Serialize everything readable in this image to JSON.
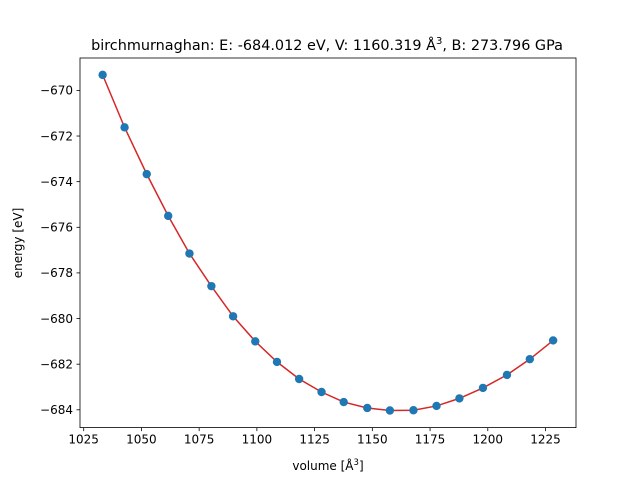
{
  "chart_data": {
    "type": "line",
    "title_main": "birchmurnaghan: E: -684.012 eV, V: 1160.319 Å",
    "title_sup": "3",
    "title_end": ", B: 273.796 GPa",
    "xlabel_main": "volume [Å",
    "xlabel_sup": "3",
    "xlabel_end": "]",
    "ylabel": "energy [eV]",
    "xlim": [
      1023.4,
      1238.2
    ],
    "ylim": [
      -684.78,
      -668.58
    ],
    "xticks": [
      1025,
      1050,
      1075,
      1100,
      1125,
      1150,
      1175,
      1200,
      1225
    ],
    "yticks": [
      -684,
      -682,
      -680,
      -678,
      -676,
      -674,
      -672,
      -670
    ],
    "ytick_labels": [
      "−684",
      "−682",
      "−680",
      "−678",
      "−676",
      "−674",
      "−672",
      "−670"
    ],
    "fit_color": "#d62728",
    "point_color": "#1f77b4",
    "points": {
      "x": [
        1033.2,
        1042.7,
        1052.3,
        1061.6,
        1070.8,
        1080.3,
        1089.7,
        1099.3,
        1108.7,
        1118.3,
        1128.0,
        1137.6,
        1147.8,
        1157.6,
        1167.8,
        1177.8,
        1187.7,
        1197.9,
        1208.3,
        1218.2,
        1228.3
      ],
      "y": [
        -669.32,
        -671.62,
        -673.67,
        -675.5,
        -677.15,
        -678.58,
        -679.9,
        -681.0,
        -681.9,
        -682.65,
        -683.22,
        -683.66,
        -683.92,
        -684.03,
        -684.02,
        -683.83,
        -683.5,
        -683.04,
        -682.47,
        -681.78,
        -680.96
      ]
    },
    "fit": {
      "x": [
        1033.2,
        1042.7,
        1052.3,
        1061.6,
        1070.8,
        1080.3,
        1089.7,
        1099.3,
        1108.7,
        1118.3,
        1128.0,
        1137.6,
        1147.8,
        1157.6,
        1167.8,
        1177.8,
        1187.7,
        1197.9,
        1208.3,
        1218.2,
        1228.3
      ],
      "y": [
        -669.32,
        -671.62,
        -673.67,
        -675.5,
        -677.15,
        -678.58,
        -679.9,
        -681.0,
        -681.9,
        -682.65,
        -683.22,
        -683.66,
        -683.92,
        -684.03,
        -684.02,
        -683.83,
        -683.5,
        -683.04,
        -682.47,
        -681.78,
        -680.96
      ]
    }
  }
}
